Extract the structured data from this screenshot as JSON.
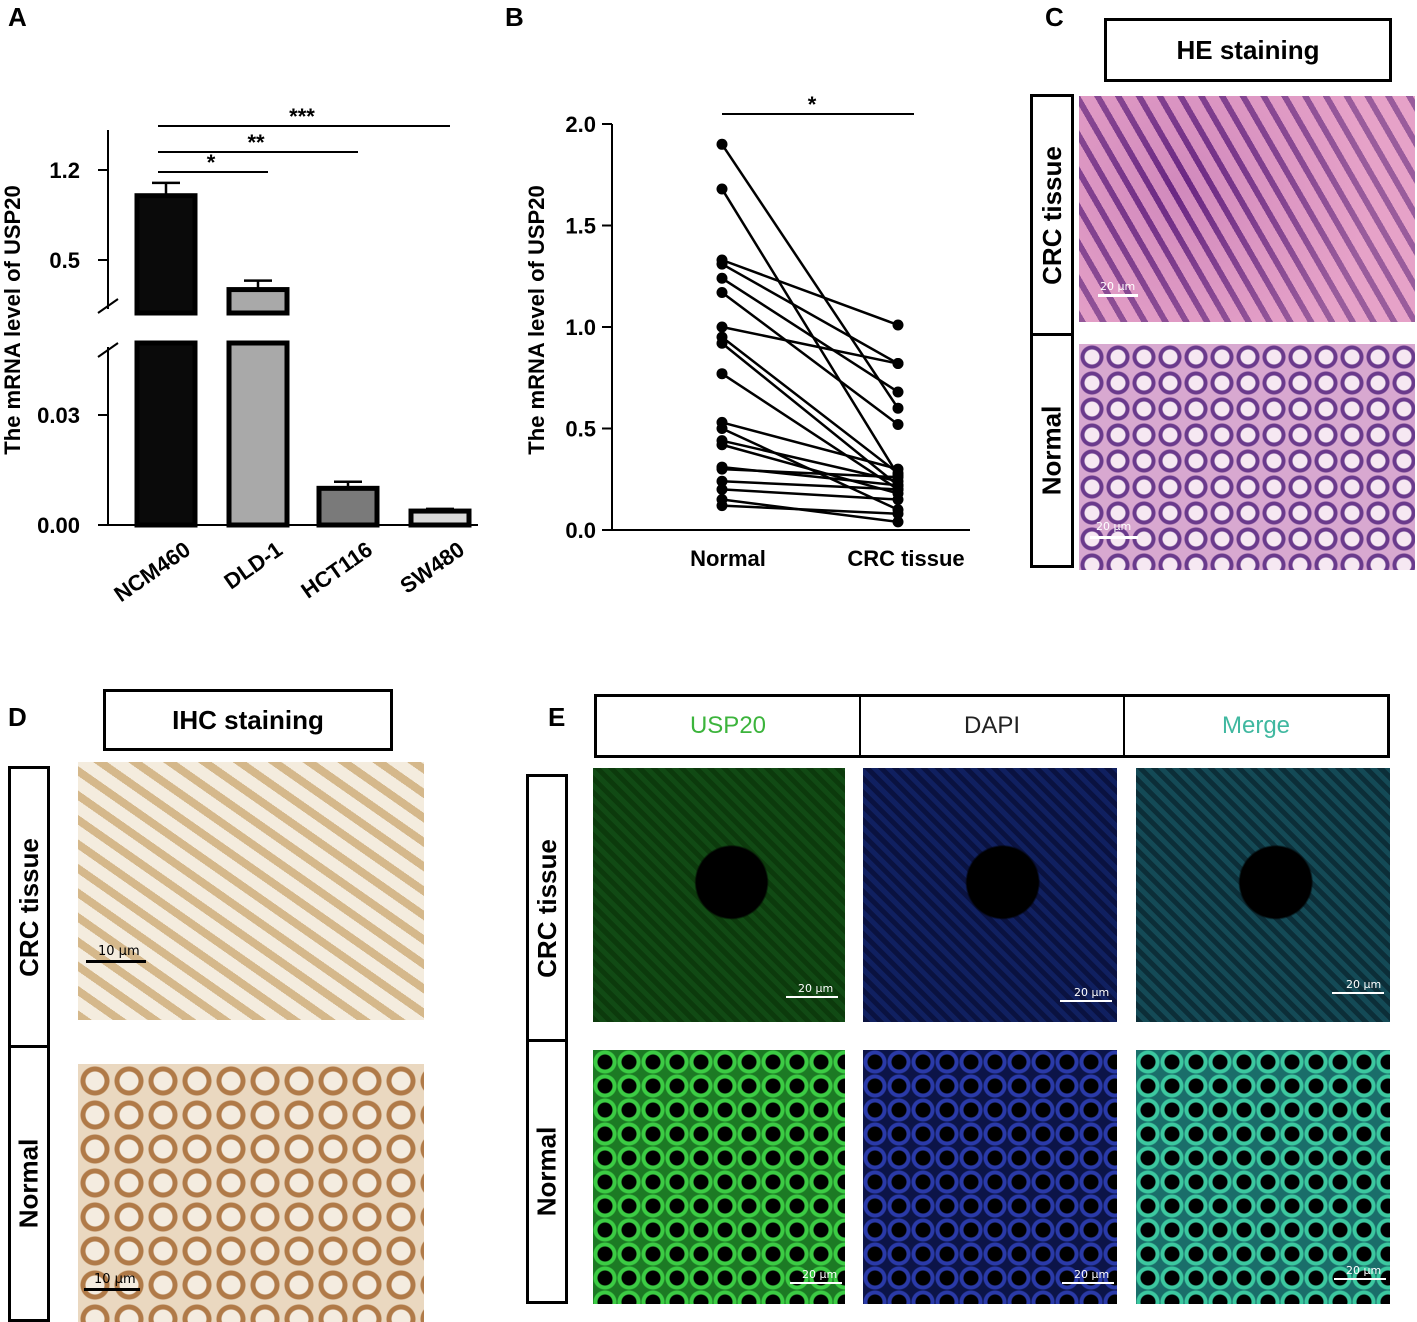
{
  "panels": {
    "a": "A",
    "b": "B",
    "c": "C",
    "d": "D",
    "e": "E"
  },
  "chart_data": [
    {
      "type": "bar",
      "panel": "A",
      "ylabel": "The mRNA level of USP20",
      "categories": [
        "NCM460",
        "DLD-1",
        "HCT116",
        "SW480"
      ],
      "values": [
        1.0,
        0.27,
        0.01,
        0.0038
      ],
      "errors": [
        0.1,
        0.07,
        0.0018,
        0.0006
      ],
      "colors": [
        "#0a0a0a",
        "#a9a9a9",
        "#7a7a7a",
        "#d9d9d9"
      ],
      "y_axis_broken": true,
      "upper_ticks": [
        "0.5",
        "1.2"
      ],
      "lower_ticks": [
        "0.00",
        "0.03"
      ],
      "significance": [
        {
          "from": "NCM460",
          "to": "DLD-1",
          "label": "*"
        },
        {
          "from": "NCM460",
          "to": "HCT116",
          "label": "**"
        },
        {
          "from": "NCM460",
          "to": "SW480",
          "label": "***"
        }
      ]
    },
    {
      "type": "line",
      "panel": "B",
      "ylabel": "The mRNA level of USP20",
      "categories": [
        "Normal",
        "CRC tissue"
      ],
      "ylim": [
        0,
        2.0
      ],
      "yticks": [
        "0.0",
        "0.5",
        "1.0",
        "1.5",
        "2.0"
      ],
      "pairs": [
        [
          1.9,
          0.6
        ],
        [
          1.68,
          0.27
        ],
        [
          1.33,
          1.01
        ],
        [
          1.31,
          0.82
        ],
        [
          1.24,
          0.68
        ],
        [
          1.17,
          0.52
        ],
        [
          1.0,
          0.82
        ],
        [
          0.95,
          0.28
        ],
        [
          0.92,
          0.22
        ],
        [
          0.77,
          0.2
        ],
        [
          0.53,
          0.3
        ],
        [
          0.5,
          0.1
        ],
        [
          0.44,
          0.24
        ],
        [
          0.42,
          0.18
        ],
        [
          0.31,
          0.22
        ],
        [
          0.3,
          0.26
        ],
        [
          0.24,
          0.2
        ],
        [
          0.2,
          0.15
        ],
        [
          0.15,
          0.04
        ],
        [
          0.12,
          0.08
        ]
      ],
      "significance": [
        {
          "from": "Normal",
          "to": "CRC tissue",
          "label": "*"
        }
      ]
    }
  ],
  "panel_c": {
    "title": "HE staining",
    "rows": [
      "CRC tissue",
      "Normal"
    ],
    "scale_label": "20 μm"
  },
  "panel_d": {
    "title": "IHC staining",
    "rows": [
      "CRC tissue",
      "Normal"
    ],
    "scale_label": "10 μm"
  },
  "panel_e": {
    "columns": [
      {
        "label": "USP20",
        "color": "#3cb43c"
      },
      {
        "label": "DAPI",
        "color": "#222222"
      },
      {
        "label": "Merge",
        "color": "#40b8a0"
      }
    ],
    "rows": [
      "CRC tissue",
      "Normal"
    ],
    "scale_label": "20 μm"
  }
}
